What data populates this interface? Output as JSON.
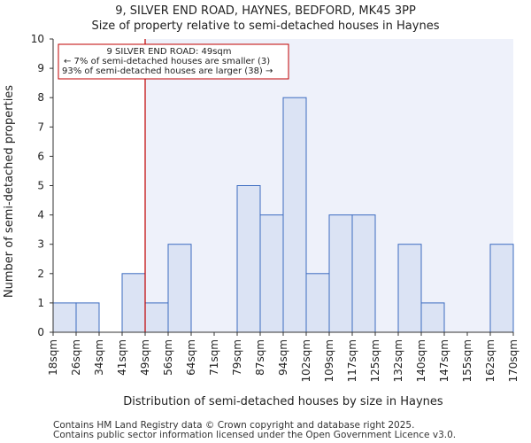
{
  "title_line1": "9, SILVER END ROAD, HAYNES, BEDFORD, MK45 3PP",
  "title_line2": "Size of property relative to semi-detached houses in Haynes",
  "footer_line1": "Contains HM Land Registry data © Crown copyright and database right 2025.",
  "footer_line2": "Contains public sector information licensed under the Open Government Licence v3.0.",
  "annotation": {
    "line1": "9 SILVER END ROAD: 49sqm",
    "line2": "← 7% of semi-detached houses are smaller (3)",
    "line3": "93% of semi-detached houses are larger (38) →"
  },
  "colors": {
    "bar_fill": "#dbe3f4",
    "bar_stroke": "#3d6cc0",
    "marker_line": "#c00000",
    "shade": "#eef1fa"
  },
  "chart_data": {
    "type": "bar",
    "xlabel": "Distribution of semi-detached houses by size in Haynes",
    "ylabel": "Number of semi-detached properties",
    "ylim": [
      0,
      10
    ],
    "yticks": [
      0,
      1,
      2,
      3,
      4,
      5,
      6,
      7,
      8,
      9,
      10
    ],
    "bin_edges": [
      "18sqm",
      "26sqm",
      "34sqm",
      "41sqm",
      "49sqm",
      "56sqm",
      "64sqm",
      "71sqm",
      "79sqm",
      "87sqm",
      "94sqm",
      "102sqm",
      "109sqm",
      "117sqm",
      "125sqm",
      "132sqm",
      "140sqm",
      "147sqm",
      "155sqm",
      "162sqm",
      "170sqm"
    ],
    "values": [
      1,
      1,
      0,
      2,
      1,
      3,
      0,
      0,
      5,
      4,
      8,
      2,
      4,
      4,
      0,
      3,
      1,
      0,
      0,
      3
    ],
    "subject_value": "49sqm",
    "subject_bin_edge_index": 4,
    "grid": false
  }
}
